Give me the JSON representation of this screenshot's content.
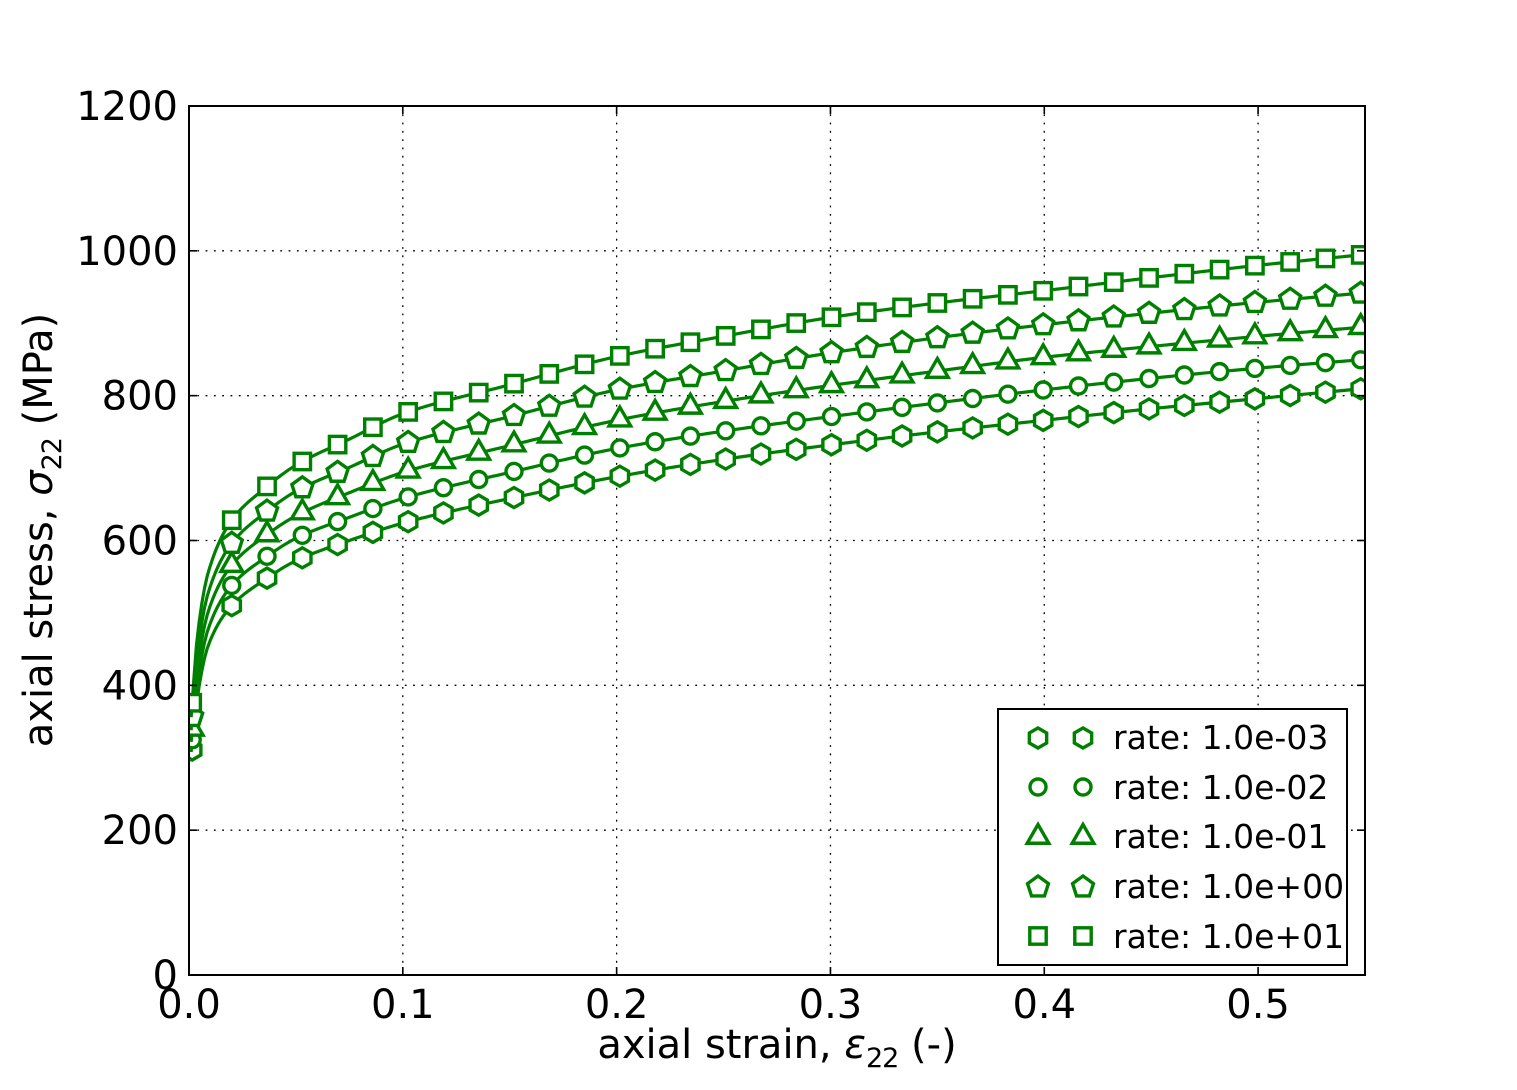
{
  "colors": {
    "series": "#008000",
    "axes": "#000000",
    "grid": "#000000",
    "background": "#ffffff",
    "marker_face": "#ffffff"
  },
  "labels": {
    "x_prefix": "axial strain, ",
    "x_symbol": "ε",
    "x_subscript": "22",
    "x_suffix": " (-)",
    "y_prefix": "axial stress, ",
    "y_symbol": "σ",
    "y_subscript": "22",
    "y_suffix": " (MPa)"
  },
  "chart_data": {
    "type": "line",
    "title": "",
    "xlabel": "axial strain, ε_22 (-)",
    "ylabel": "axial stress, σ_22 (MPa)",
    "xlim": [
      0,
      0.55
    ],
    "ylim": [
      0,
      1200
    ],
    "xticks": [
      0.0,
      0.1,
      0.2,
      0.3,
      0.4,
      0.5
    ],
    "xtick_labels": [
      "0.0",
      "0.1",
      "0.2",
      "0.3",
      "0.4",
      "0.5"
    ],
    "yticks": [
      0,
      200,
      400,
      600,
      800,
      1000,
      1200
    ],
    "ytick_labels": [
      "0",
      "200",
      "400",
      "600",
      "800",
      "1000",
      "1200"
    ],
    "grid": "dotted",
    "legend_position": "lower right",
    "x": [
      0.001,
      0.004,
      0.009,
      0.02,
      0.035,
      0.05,
      0.075,
      0.1,
      0.15,
      0.2,
      0.25,
      0.3,
      0.35,
      0.4,
      0.45,
      0.5,
      0.55
    ],
    "series": [
      {
        "name": "rate: 1.0e-03",
        "marker": "hexagon",
        "values": [
          295,
          385,
          455,
          510,
          545,
          572,
          600,
          624,
          658,
          688,
          712,
          732,
          750,
          766,
          782,
          796,
          810
        ]
      },
      {
        "name": "rate: 1.0e-02",
        "marker": "circle",
        "values": [
          308,
          404,
          478,
          538,
          575,
          603,
          632,
          658,
          694,
          727,
          751,
          771,
          790,
          808,
          824,
          838,
          850
        ]
      },
      {
        "name": "rate: 1.0e-01",
        "marker": "triangle",
        "values": [
          322,
          424,
          502,
          566,
          605,
          634,
          666,
          694,
          731,
          766,
          792,
          814,
          834,
          853,
          868,
          882,
          895
        ]
      },
      {
        "name": "rate: 1.0e+00",
        "marker": "pentagon",
        "values": [
          338,
          446,
          528,
          596,
          637,
          668,
          701,
          733,
          771,
          808,
          834,
          859,
          880,
          898,
          914,
          929,
          942
        ]
      },
      {
        "name": "rate: 1.0e+01",
        "marker": "square",
        "values": [
          356,
          470,
          556,
          628,
          671,
          704,
          740,
          775,
          815,
          854,
          882,
          908,
          928,
          945,
          963,
          980,
          995
        ]
      }
    ],
    "marker_schedule": {
      "first": 0.0015,
      "start": 0.02,
      "step": 0.0165,
      "last": 0.548
    }
  }
}
